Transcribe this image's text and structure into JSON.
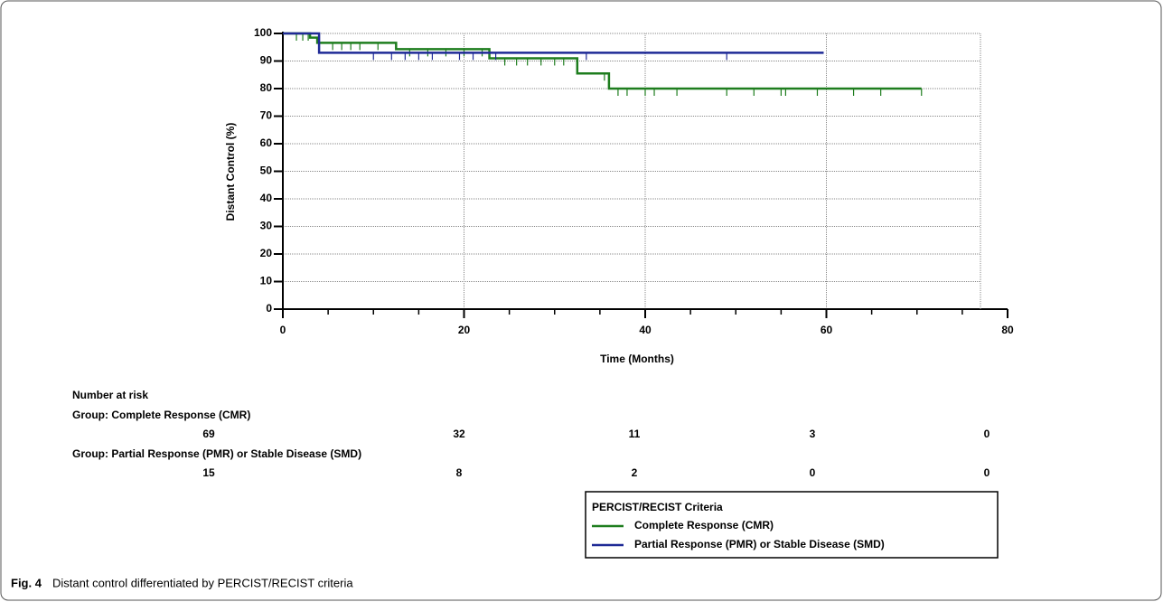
{
  "chart_data": {
    "type": "line",
    "step": "post",
    "x_label": "Time (Months)",
    "y_label": "Distant Control (%)",
    "xlim": [
      0,
      80
    ],
    "ylim": [
      0,
      100
    ],
    "xticks": [
      0,
      20,
      40,
      60,
      80
    ],
    "xminorticks": [
      5,
      10,
      15,
      25,
      30,
      35,
      45,
      50,
      55,
      65,
      70,
      75
    ],
    "yticks": [
      0,
      10,
      20,
      30,
      40,
      50,
      60,
      70,
      80,
      90,
      100
    ],
    "grid": true,
    "series": [
      {
        "name": "Complete Response (CMR)",
        "color": "#1e7d1e",
        "x": [
          0,
          3,
          3.8,
          12.5,
          22.8,
          32.5,
          36,
          70.5
        ],
        "values": [
          100,
          98.5,
          96.6,
          94.3,
          91,
          85.5,
          80,
          80
        ],
        "censor_x": [
          1.5,
          2.2,
          2.8,
          5.5,
          6.5,
          7.5,
          8.5,
          10.5,
          14,
          16,
          18,
          20,
          22,
          24.5,
          25.8,
          27,
          28.5,
          30,
          31,
          35.5,
          37,
          38,
          40,
          41,
          43.5,
          49,
          52,
          55,
          55.5,
          59,
          63,
          66,
          70.5
        ],
        "censor_values": [
          100,
          100,
          100,
          96.6,
          96.6,
          96.6,
          96.6,
          96.6,
          94.3,
          94.3,
          94.3,
          94.3,
          94.3,
          91,
          91,
          91,
          91,
          91,
          91,
          85.5,
          80,
          80,
          80,
          80,
          80,
          80,
          80,
          80,
          80,
          80,
          80,
          80,
          80
        ]
      },
      {
        "name": "Partial Response (PMR) or Stable Disease (SMD)",
        "color": "#1f2a96",
        "x": [
          0,
          4,
          59.7
        ],
        "values": [
          100,
          93,
          93
        ],
        "censor_x": [
          10,
          12,
          13.5,
          15,
          16.5,
          19.5,
          21,
          23.5,
          33.5,
          49
        ],
        "censor_values": [
          93,
          93,
          93,
          93,
          93,
          93,
          93,
          93,
          93,
          93
        ]
      }
    ],
    "risk_table": {
      "title": "Number at risk",
      "groups": [
        {
          "label": "Group: Complete Response (CMR)",
          "counts": [
            69,
            32,
            11,
            3,
            0
          ]
        },
        {
          "label": "Group: Partial Response (PMR) or Stable Disease (SMD)",
          "counts": [
            15,
            8,
            2,
            0,
            0
          ]
        }
      ]
    },
    "legend_title": "PERCIST/RECIST Criteria"
  },
  "caption": {
    "label": "Fig. 4",
    "text": "Distant control differentiated by PERCIST/RECIST criteria"
  }
}
